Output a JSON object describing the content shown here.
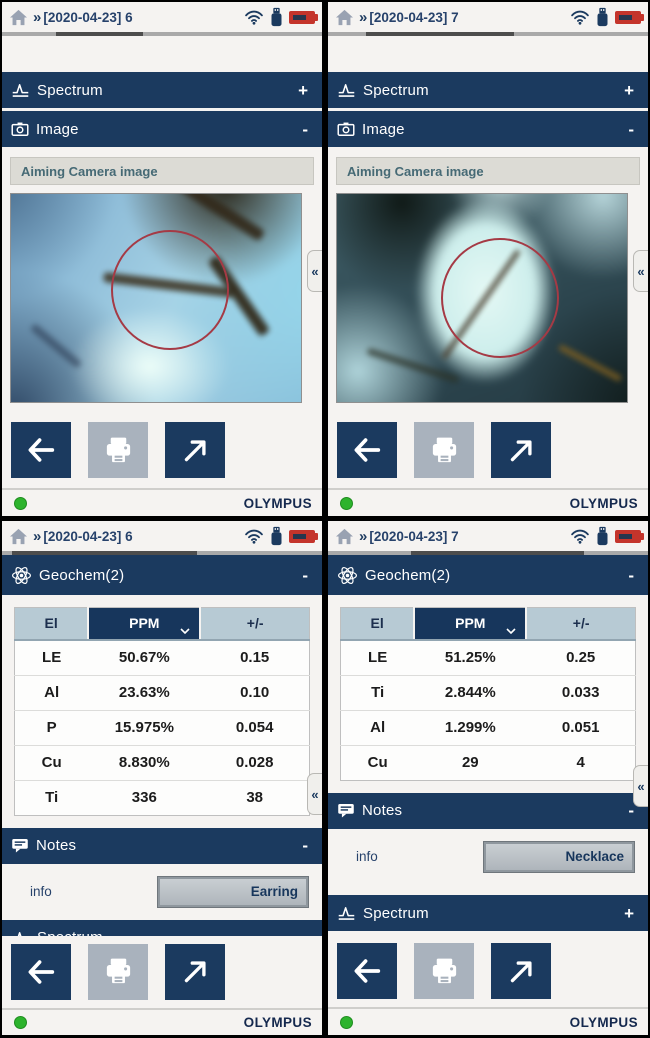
{
  "colors": {
    "navy": "#1b3a5f",
    "table_header_light": "#b7cad4",
    "battery_red": "#c4342b",
    "status_green": "#2db32d",
    "reticle_red": "#a53a45",
    "disabled_button_gray": "#a9b2bd"
  },
  "common": {
    "breadcrumb": "»",
    "collapse_handle": "«",
    "expand_toggle": "+",
    "collapse_toggle": "-",
    "spectrum_label": "Spectrum",
    "image_label": "Image",
    "geochem_label": "Geochem(2)",
    "notes_label": "Notes",
    "aiming_label": "Aiming Camera image",
    "info_label": "info",
    "logo": "OLYMPUS",
    "status_icons": [
      "wifi",
      "usb-drive",
      "battery"
    ]
  },
  "screens": [
    {
      "title": "[2020-04-23] 6"
    },
    {
      "title": "[2020-04-23] 7"
    },
    {
      "title": "[2020-04-23] 6",
      "info_value": "Earring",
      "table": {
        "headers": [
          "El",
          "PPM",
          "+/-"
        ],
        "rows": [
          [
            "LE",
            "50.67%",
            "0.15"
          ],
          [
            "Al",
            "23.63%",
            "0.10"
          ],
          [
            "P",
            "15.975%",
            "0.054"
          ],
          [
            "Cu",
            "8.830%",
            "0.028"
          ],
          [
            "Ti",
            "336",
            "38"
          ]
        ]
      }
    },
    {
      "title": "[2020-04-23] 7",
      "info_value": "Necklace",
      "table": {
        "headers": [
          "El",
          "PPM",
          "+/-"
        ],
        "rows": [
          [
            "LE",
            "51.25%",
            "0.25"
          ],
          [
            "Ti",
            "2.844%",
            "0.033"
          ],
          [
            "Al",
            "1.299%",
            "0.051"
          ],
          [
            "Cu",
            "29",
            "4"
          ]
        ]
      }
    }
  ]
}
